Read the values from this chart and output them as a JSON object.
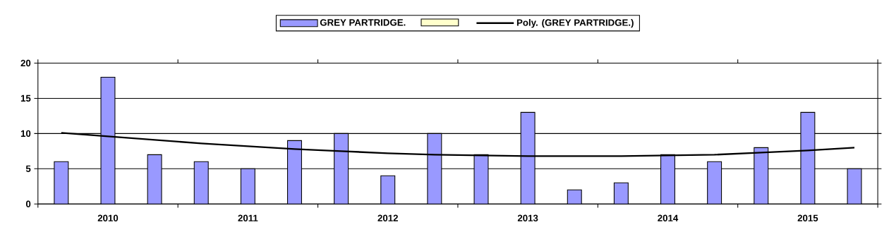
{
  "chart_data": {
    "type": "bar",
    "categories": [
      null,
      "2010",
      null,
      null,
      "2011",
      null,
      null,
      "2012",
      null,
      null,
      "2013",
      null,
      null,
      "2014",
      null,
      null,
      "2015",
      null
    ],
    "series": [
      {
        "name": "GREY PARTRIDGE.",
        "color": "#9999ff",
        "values": [
          6,
          18,
          7,
          6,
          5,
          9,
          10,
          4,
          10,
          7,
          13,
          2,
          3,
          7,
          6,
          8,
          13,
          5
        ]
      },
      {
        "name": "Poly. (GREY PARTRIDGE.)",
        "type": "line",
        "color": "#000000",
        "values": [
          10.1,
          9.6,
          9.1,
          8.6,
          8.2,
          7.8,
          7.5,
          7.2,
          7.0,
          6.9,
          6.8,
          6.8,
          6.8,
          6.9,
          7.0,
          7.3,
          7.6,
          8.0
        ]
      }
    ],
    "ylim": [
      0,
      20
    ],
    "yticks": [
      0,
      5,
      10,
      15,
      20
    ],
    "grid": "y",
    "legend": "top",
    "marker": "none",
    "line_style": "solid"
  }
}
